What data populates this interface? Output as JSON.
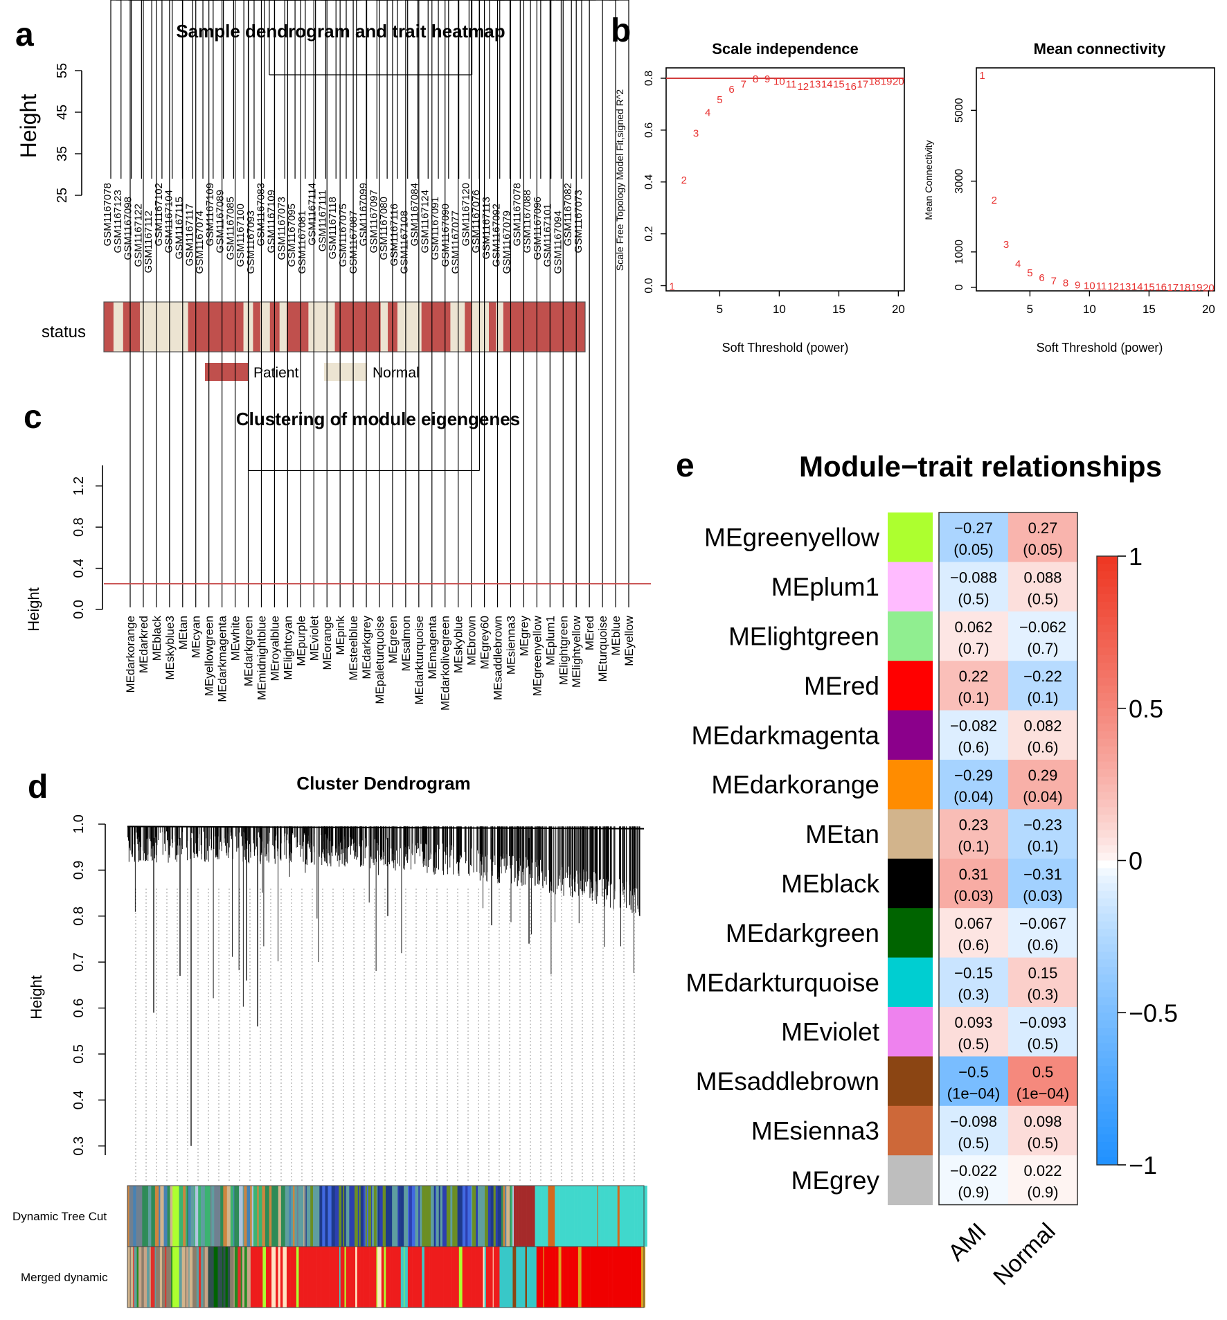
{
  "panel_labels": {
    "a": "a",
    "b": "b",
    "c": "c",
    "d": "d",
    "e": "e"
  },
  "chart_data": [
    {
      "id": "a",
      "type": "heatmap",
      "title": "Sample dendrogram and trait heatmap",
      "ylabel": "Height",
      "yticks": [
        "25",
        "35",
        "45",
        "55"
      ],
      "ylim": [
        25,
        55
      ],
      "samples": [
        "GSM1167078",
        "GSM1167123",
        "GSM1167098",
        "GSM1167122",
        "GSM1167112",
        "GSM1167102",
        "GSM1167104",
        "GSM1167115",
        "GSM1167117",
        "GSM1167074",
        "GSM1167109",
        "GSM1167089",
        "GSM1167085",
        "GSM1167100",
        "GSM1167093",
        "GSM1167083",
        "GSM1167109",
        "GSM1167073",
        "GSM1167095",
        "GSM1167081",
        "GSM1167114",
        "GSM1167111",
        "GSM1167118",
        "GSM1167075",
        "GSM1167087",
        "GSM1167099",
        "GSM1167097",
        "GSM1167080",
        "GSM1167116",
        "GSM1167108",
        "GSM1167084",
        "GSM1167124",
        "GSM1167091",
        "GSM1167090",
        "GSM1167077",
        "GSM1167120",
        "GSM1167076",
        "GSM1167113",
        "GSM1167092",
        "GSM1167079",
        "GSM1167078",
        "GSM1167088",
        "GSM1167096",
        "GSM1167101",
        "GSM1167094",
        "GSM1167082",
        "GSM1167073"
      ],
      "row_label": "status",
      "status_segments": [
        {
          "status": "Patient",
          "start": 0.0,
          "end": 0.02
        },
        {
          "status": "Normal",
          "start": 0.02,
          "end": 0.04
        },
        {
          "status": "Patient",
          "start": 0.04,
          "end": 0.075
        },
        {
          "status": "Normal",
          "start": 0.075,
          "end": 0.175
        },
        {
          "status": "Patient",
          "start": 0.175,
          "end": 0.29
        },
        {
          "status": "Normal",
          "start": 0.29,
          "end": 0.31
        },
        {
          "status": "Patient",
          "start": 0.31,
          "end": 0.325
        },
        {
          "status": "Normal",
          "start": 0.325,
          "end": 0.345
        },
        {
          "status": "Patient",
          "start": 0.345,
          "end": 0.365
        },
        {
          "status": "Normal",
          "start": 0.365,
          "end": 0.38
        },
        {
          "status": "Patient",
          "start": 0.38,
          "end": 0.425
        },
        {
          "status": "Normal",
          "start": 0.425,
          "end": 0.48
        },
        {
          "status": "Patient",
          "start": 0.48,
          "end": 0.575
        },
        {
          "status": "Normal",
          "start": 0.575,
          "end": 0.59
        },
        {
          "status": "Patient",
          "start": 0.59,
          "end": 0.61
        },
        {
          "status": "Normal",
          "start": 0.61,
          "end": 0.66
        },
        {
          "status": "Patient",
          "start": 0.66,
          "end": 0.72
        },
        {
          "status": "Normal",
          "start": 0.72,
          "end": 0.75
        },
        {
          "status": "Patient",
          "start": 0.75,
          "end": 0.765
        },
        {
          "status": "Normal",
          "start": 0.765,
          "end": 0.8
        },
        {
          "status": "Patient",
          "start": 0.8,
          "end": 0.815
        },
        {
          "status": "Normal",
          "start": 0.815,
          "end": 0.83
        },
        {
          "status": "Patient",
          "start": 0.83,
          "end": 1.0
        }
      ],
      "legend": [
        {
          "name": "Patient",
          "color": "#c0504d"
        },
        {
          "name": "Normal",
          "color": "#ece4d2"
        }
      ]
    },
    {
      "id": "b1",
      "type": "scatter",
      "title": "Scale independence",
      "xlabel": "Soft Threshold (power)",
      "ylabel": "Scale Free Topology Model Fit,signed R^2",
      "xlim": [
        0.5,
        20.5
      ],
      "ylim": [
        -0.02,
        0.84
      ],
      "xticks": [
        "5",
        "10",
        "15",
        "20"
      ],
      "yticks": [
        "0.0",
        "0.2",
        "0.4",
        "0.6",
        "0.8"
      ],
      "hline": 0.8,
      "x": [
        1,
        2,
        3,
        4,
        5,
        6,
        7,
        8,
        9,
        10,
        11,
        12,
        13,
        14,
        15,
        16,
        17,
        18,
        19,
        20
      ],
      "y": [
        0.0,
        0.41,
        0.59,
        0.67,
        0.72,
        0.76,
        0.78,
        0.8,
        0.8,
        0.79,
        0.78,
        0.77,
        0.78,
        0.78,
        0.78,
        0.77,
        0.78,
        0.79,
        0.79,
        0.79
      ],
      "point_labels": [
        "1",
        "2",
        "3",
        "4",
        "5",
        "6",
        "7",
        "8",
        "9",
        "10",
        "11",
        "12",
        "13",
        "14",
        "15",
        "16",
        "17",
        "18",
        "19",
        "20"
      ],
      "color": "#e8302f"
    },
    {
      "id": "b2",
      "type": "scatter",
      "title": "Mean connectivity",
      "xlabel": "Soft Threshold (power)",
      "ylabel": "Mean Connectivity",
      "xlim": [
        0.5,
        20.5
      ],
      "ylim": [
        -100,
        6200
      ],
      "xticks": [
        "5",
        "10",
        "15",
        "20"
      ],
      "yticks": [
        "0",
        "1000",
        "3000",
        "5000"
      ],
      "x": [
        1,
        2,
        3,
        4,
        5,
        6,
        7,
        8,
        9,
        10,
        11,
        12,
        13,
        14,
        15,
        16,
        17,
        18,
        19,
        20
      ],
      "y": [
        6000,
        2480,
        1230,
        680,
        430,
        290,
        200,
        140,
        90,
        70,
        60,
        50,
        40,
        35,
        30,
        25,
        20,
        18,
        15,
        12
      ],
      "point_labels": [
        "1",
        "2",
        "3",
        "4",
        "5",
        "6",
        "7",
        "8",
        "9",
        "10",
        "11",
        "12",
        "13",
        "14",
        "15",
        "16",
        "17",
        "18",
        "19",
        "20"
      ],
      "color": "#e8302f"
    },
    {
      "id": "c",
      "type": "line",
      "title": "Clustering of module eigengenes",
      "ylabel": "Height",
      "yticks": [
        "0.0",
        "0.4",
        "0.8",
        "1.2"
      ],
      "ylim": [
        0,
        1.4
      ],
      "cut_height": 0.25,
      "modules": [
        "MEdarkorange",
        "MEdarkred",
        "MEblack",
        "MEskyblue3",
        "MEtan",
        "MEcyan",
        "MEyellowgreen",
        "MEdarkmagenta",
        "MEwhite",
        "MEdarkgreen",
        "MEmidnightblue",
        "MEroyalblue",
        "MElightcyan",
        "MEpurple",
        "MEviolet",
        "MEorange",
        "MEpink",
        "MEsteelblue",
        "MEdarkgrey",
        "MEpaleturquoise",
        "MEgreen",
        "MEsalmon",
        "MEdarkturquoise",
        "MEmagenta",
        "MEdarkolivegreen",
        "MEskyblue",
        "MEbrown",
        "MEgrey60",
        "MEsaddlebrown",
        "MEsienna3",
        "MEgrey",
        "MEgreenyellow",
        "MEplum1",
        "MElightgreen",
        "MElightyellow",
        "MEred",
        "MEturquoise",
        "MEblue",
        "MEyellow"
      ]
    },
    {
      "id": "d",
      "type": "line",
      "title": "Cluster Dendrogram",
      "ylabel": "Height",
      "yticks": [
        "0.3",
        "0.4",
        "0.5",
        "0.6",
        "0.7",
        "0.8",
        "0.9",
        "1.0"
      ],
      "ylim": [
        0.28,
        1.0
      ],
      "color_rows": [
        "Dynamic Tree Cut",
        "Merged dynamic"
      ]
    },
    {
      "id": "e",
      "type": "heatmap",
      "title": "Module−trait relationships",
      "columns": [
        "AMI",
        "Normal"
      ],
      "rows": [
        {
          "module": "MEgreenyellow",
          "color": "#adff2f",
          "values": [
            "−0.27",
            "0.27"
          ],
          "pvalues": [
            "(0.05)",
            "(0.05)"
          ],
          "corr": [
            -0.27,
            0.27
          ]
        },
        {
          "module": "MEplum1",
          "color": "#ffbbff",
          "values": [
            "−0.088",
            "0.088"
          ],
          "pvalues": [
            "(0.5)",
            "(0.5)"
          ],
          "corr": [
            -0.088,
            0.088
          ]
        },
        {
          "module": "MElightgreen",
          "color": "#90ee90",
          "values": [
            "0.062",
            "−0.062"
          ],
          "pvalues": [
            "(0.7)",
            "(0.7)"
          ],
          "corr": [
            0.062,
            -0.062
          ]
        },
        {
          "module": "MEred",
          "color": "#ff0000",
          "values": [
            "0.22",
            "−0.22"
          ],
          "pvalues": [
            "(0.1)",
            "(0.1)"
          ],
          "corr": [
            0.22,
            -0.22
          ]
        },
        {
          "module": "MEdarkmagenta",
          "color": "#8b008b",
          "values": [
            "−0.082",
            "0.082"
          ],
          "pvalues": [
            "(0.6)",
            "(0.6)"
          ],
          "corr": [
            -0.082,
            0.082
          ]
        },
        {
          "module": "MEdarkorange",
          "color": "#ff8c00",
          "values": [
            "−0.29",
            "0.29"
          ],
          "pvalues": [
            "(0.04)",
            "(0.04)"
          ],
          "corr": [
            -0.29,
            0.29
          ]
        },
        {
          "module": "MEtan",
          "color": "#d2b48c",
          "values": [
            "0.23",
            "−0.23"
          ],
          "pvalues": [
            "(0.1)",
            "(0.1)"
          ],
          "corr": [
            0.23,
            -0.23
          ]
        },
        {
          "module": "MEblack",
          "color": "#000000",
          "values": [
            "0.31",
            "−0.31"
          ],
          "pvalues": [
            "(0.03)",
            "(0.03)"
          ],
          "corr": [
            0.31,
            -0.31
          ]
        },
        {
          "module": "MEdarkgreen",
          "color": "#006400",
          "values": [
            "0.067",
            "−0.067"
          ],
          "pvalues": [
            "(0.6)",
            "(0.6)"
          ],
          "corr": [
            0.067,
            -0.067
          ]
        },
        {
          "module": "MEdarkturquoise",
          "color": "#00ced1",
          "values": [
            "−0.15",
            "0.15"
          ],
          "pvalues": [
            "(0.3)",
            "(0.3)"
          ],
          "corr": [
            -0.15,
            0.15
          ]
        },
        {
          "module": "MEviolet",
          "color": "#ee82ee",
          "values": [
            "0.093",
            "−0.093"
          ],
          "pvalues": [
            "(0.5)",
            "(0.5)"
          ],
          "corr": [
            0.093,
            -0.093
          ]
        },
        {
          "module": "MEsaddlebrown",
          "color": "#8b4513",
          "values": [
            "−0.5",
            "0.5"
          ],
          "pvalues": [
            "(1e−04)",
            "(1e−04)"
          ],
          "corr": [
            -0.5,
            0.5
          ]
        },
        {
          "module": "MEsienna3",
          "color": "#cd6839",
          "values": [
            "−0.098",
            "0.098"
          ],
          "pvalues": [
            "(0.5)",
            "(0.5)"
          ],
          "corr": [
            -0.098,
            0.098
          ]
        },
        {
          "module": "MEgrey",
          "color": "#bebebe",
          "values": [
            "−0.022",
            "0.022"
          ],
          "pvalues": [
            "(0.9)",
            "(0.9)"
          ],
          "corr": [
            -0.022,
            0.022
          ]
        }
      ],
      "colorbar_ticks": [
        "1",
        "0.5",
        "0",
        "−0.5",
        "−1"
      ],
      "colorbar_range": [
        -1,
        1
      ]
    }
  ]
}
